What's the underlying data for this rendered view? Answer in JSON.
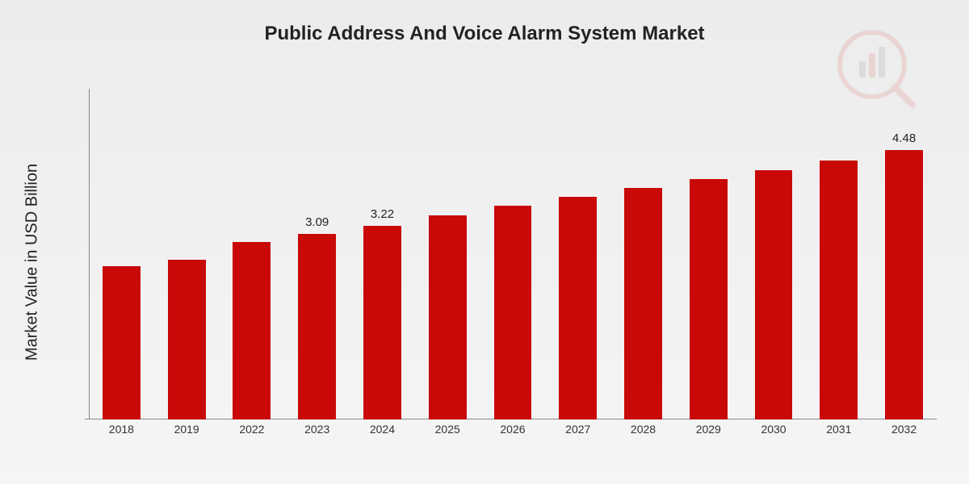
{
  "chart": {
    "type": "bar",
    "title": "Public Address And Voice Alarm System Market",
    "title_fontsize": 24,
    "title_color": "#222222",
    "y_title": "Market Value in USD Billion",
    "y_title_fontsize": 20,
    "background_gradient_top": "#ececec",
    "background_gradient_bottom": "#f5f5f5",
    "axis_color": "#888888",
    "xlabel_color": "#333333",
    "xlabel_fontsize": 14,
    "bar_color": "#c90808",
    "bar_width_pct": 58,
    "data_label_color": "#222222",
    "data_label_fontsize": 15,
    "ylim": [
      0,
      5.5
    ],
    "categories": [
      "2018",
      "2019",
      "2022",
      "2023",
      "2024",
      "2025",
      "2026",
      "2027",
      "2028",
      "2029",
      "2030",
      "2031",
      "2032"
    ],
    "values": [
      2.55,
      2.65,
      2.95,
      3.09,
      3.22,
      3.4,
      3.55,
      3.7,
      3.85,
      4.0,
      4.15,
      4.3,
      4.48
    ],
    "show_value_label": [
      false,
      false,
      false,
      true,
      true,
      false,
      false,
      false,
      false,
      false,
      false,
      false,
      true
    ],
    "value_labels": [
      "",
      "",
      "",
      "3.09",
      "3.22",
      "",
      "",
      "",
      "",
      "",
      "",
      "",
      "4.48"
    ],
    "watermark": {
      "present": true,
      "opacity": 0.1,
      "ring_color": "#c90808",
      "bar_colors": [
        "#555555",
        "#c90808",
        "#555555"
      ]
    }
  }
}
